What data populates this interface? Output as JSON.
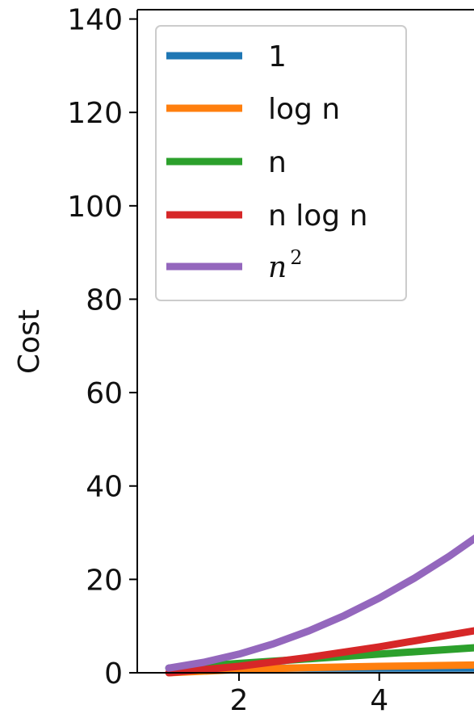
{
  "chart_data": {
    "type": "line",
    "ylabel": "Cost",
    "xlabel": "",
    "xlim": [
      0.55,
      5.5
    ],
    "ylim": [
      0,
      142
    ],
    "xticks": [
      2,
      4
    ],
    "yticks": [
      0,
      20,
      40,
      60,
      80,
      100,
      120,
      140
    ],
    "legend_position": "top-left",
    "series": [
      {
        "name": "1",
        "color": "#1f77b4",
        "x": [
          1,
          2,
          3,
          4,
          5.5
        ],
        "y": [
          1,
          1,
          1,
          1,
          1
        ]
      },
      {
        "name": "log n",
        "color": "#ff7f0e",
        "x": [
          1,
          2,
          3,
          4,
          5.5
        ],
        "y": [
          0,
          0.69,
          1.1,
          1.39,
          1.7
        ]
      },
      {
        "name": "n",
        "color": "#2ca02c",
        "x": [
          1,
          2,
          3,
          4,
          5.5
        ],
        "y": [
          1,
          2,
          3,
          4,
          5.5
        ]
      },
      {
        "name": "n log n",
        "color": "#d62728",
        "x": [
          1,
          2,
          3,
          4,
          5.5
        ],
        "y": [
          0,
          1.39,
          3.3,
          5.55,
          9.38
        ]
      },
      {
        "name": "n²",
        "color": "#9467bd",
        "x": [
          1,
          1.5,
          2,
          2.5,
          3,
          3.5,
          4,
          4.5,
          5,
          5.5
        ],
        "y": [
          1,
          2.25,
          4,
          6.25,
          9,
          12.25,
          16,
          20.25,
          25,
          30.25
        ]
      }
    ],
    "legend_labels": {
      "n2_base": "n",
      "n2_sup": "2"
    }
  }
}
